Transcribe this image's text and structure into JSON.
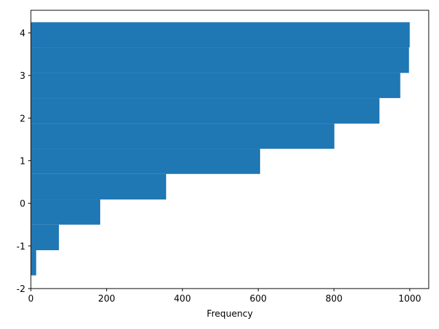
{
  "chart_data": {
    "type": "histogram",
    "orientation": "horizontal",
    "cumulative": true,
    "xlabel": "Frequency",
    "bins": [
      -1.69,
      -1.1,
      -0.5,
      0.09,
      0.69,
      1.28,
      1.87,
      2.47,
      3.06,
      3.66,
      4.25
    ],
    "counts": [
      14,
      74,
      183,
      357,
      605,
      801,
      920,
      975,
      998,
      1000
    ],
    "color": "#1f77b4",
    "xlim": [
      0,
      1050
    ],
    "xticks": [
      0,
      200,
      400,
      600,
      800,
      1000
    ],
    "ylim": [
      -2,
      4.53
    ],
    "yticks": [
      -2,
      -1,
      0,
      1,
      2,
      3,
      4
    ]
  }
}
